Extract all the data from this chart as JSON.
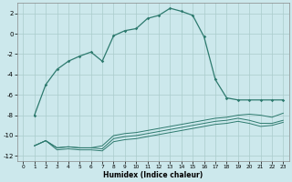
{
  "bg_color": "#cce8ec",
  "grid_color": "#aacccc",
  "line_color": "#2d7a6e",
  "xlabel": "Humidex (Indice chaleur)",
  "xlim": [
    -0.5,
    23.5
  ],
  "ylim": [
    -12.5,
    3.0
  ],
  "yticks": [
    -12,
    -10,
    -8,
    -6,
    -4,
    -2,
    0,
    2
  ],
  "xticks": [
    0,
    1,
    2,
    3,
    4,
    5,
    6,
    7,
    8,
    9,
    10,
    11,
    12,
    13,
    14,
    15,
    16,
    17,
    18,
    19,
    20,
    21,
    22,
    23
  ],
  "line1_x": [
    1,
    2,
    3,
    4,
    5,
    6,
    7,
    8,
    9,
    10,
    11,
    12,
    13,
    14,
    15,
    16,
    17,
    18,
    19,
    20,
    21,
    22,
    23
  ],
  "line1_y": [
    -8,
    -5,
    -3.5,
    -2.7,
    -2.2,
    -1.8,
    -2.7,
    -0.2,
    0.3,
    0.5,
    1.5,
    1.8,
    2.5,
    2.2,
    1.8,
    -0.3,
    -4.5,
    -6.3,
    -6.5,
    -6.5,
    -6.5,
    -6.5,
    -6.5
  ],
  "line2_x": [
    1,
    2,
    3,
    4,
    5,
    6,
    7,
    8,
    9,
    10,
    11,
    12,
    13,
    14,
    15,
    16,
    17,
    18,
    19,
    20,
    21,
    22,
    23
  ],
  "line2_y": [
    -11.0,
    -10.5,
    -11.2,
    -11.1,
    -11.2,
    -11.2,
    -11.0,
    -10.0,
    -9.8,
    -9.7,
    -9.5,
    -9.3,
    -9.1,
    -8.9,
    -8.7,
    -8.5,
    -8.3,
    -8.2,
    -8.0,
    -7.9,
    -8.0,
    -8.2,
    -7.8
  ],
  "line3_x": [
    1,
    2,
    3,
    4,
    5,
    6,
    7,
    8,
    9,
    10,
    11,
    12,
    13,
    14,
    15,
    16,
    17,
    18,
    19,
    20,
    21,
    22,
    23
  ],
  "line3_y": [
    -11.0,
    -10.5,
    -11.2,
    -11.1,
    -11.2,
    -11.2,
    -11.3,
    -10.3,
    -10.1,
    -10.0,
    -9.8,
    -9.6,
    -9.4,
    -9.2,
    -9.0,
    -8.8,
    -8.6,
    -8.5,
    -8.3,
    -8.5,
    -8.8,
    -8.8,
    -8.5
  ],
  "line4_x": [
    1,
    2,
    3,
    4,
    5,
    6,
    7,
    8,
    9,
    10,
    11,
    12,
    13,
    14,
    15,
    16,
    17,
    18,
    19,
    20,
    21,
    22,
    23
  ],
  "line4_y": [
    -11.0,
    -10.5,
    -11.4,
    -11.3,
    -11.4,
    -11.4,
    -11.5,
    -10.6,
    -10.4,
    -10.3,
    -10.1,
    -9.9,
    -9.7,
    -9.5,
    -9.3,
    -9.1,
    -8.9,
    -8.8,
    -8.6,
    -8.8,
    -9.1,
    -9.0,
    -8.7
  ]
}
